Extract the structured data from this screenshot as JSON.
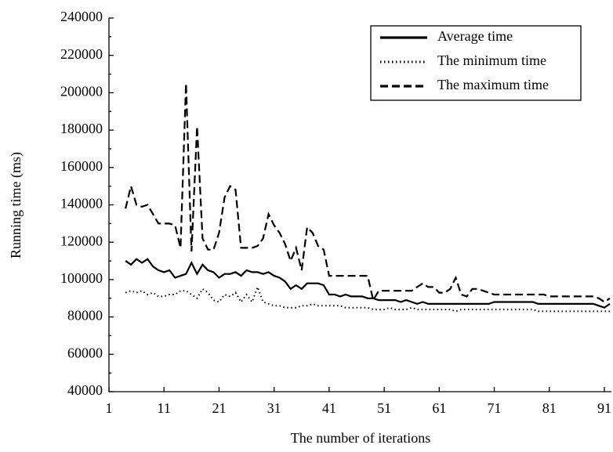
{
  "chart_data": {
    "type": "line",
    "x_label": "The number of iterations",
    "y_label": "Running time (ms)",
    "x": [
      4,
      5,
      6,
      7,
      8,
      9,
      10,
      11,
      12,
      13,
      14,
      15,
      16,
      17,
      18,
      19,
      20,
      21,
      22,
      23,
      24,
      25,
      26,
      27,
      28,
      29,
      30,
      31,
      32,
      33,
      34,
      35,
      36,
      37,
      38,
      39,
      40,
      41,
      42,
      43,
      44,
      45,
      46,
      47,
      48,
      49,
      50,
      51,
      52,
      53,
      54,
      55,
      56,
      57,
      58,
      59,
      60,
      61,
      62,
      63,
      64,
      65,
      66,
      67,
      68,
      69,
      70,
      71,
      72,
      73,
      74,
      75,
      76,
      77,
      78,
      79,
      80,
      81,
      82,
      83,
      84,
      85,
      86,
      87,
      88,
      89,
      90,
      91,
      92
    ],
    "series": [
      {
        "name": "Average time",
        "color": "#000000",
        "style": "solid",
        "values": [
          110000,
          108000,
          111000,
          109000,
          111000,
          107000,
          105000,
          104000,
          105000,
          101000,
          102000,
          103000,
          109000,
          103000,
          108000,
          105000,
          104000,
          101000,
          103000,
          103000,
          104000,
          102000,
          105000,
          104000,
          104000,
          103000,
          104000,
          102000,
          101000,
          99000,
          95000,
          97000,
          95000,
          98000,
          98000,
          98000,
          97000,
          92000,
          92000,
          91000,
          92000,
          91000,
          91000,
          91000,
          90000,
          90000,
          89000,
          89000,
          89000,
          89000,
          88000,
          89000,
          88000,
          87000,
          88000,
          87000,
          87000,
          87000,
          87000,
          87000,
          87000,
          87000,
          87000,
          87000,
          87000,
          87000,
          87000,
          88000,
          88000,
          88000,
          88000,
          88000,
          88000,
          88000,
          88000,
          87000,
          87000,
          87000,
          87000,
          87000,
          87000,
          87000,
          87000,
          87000,
          87000,
          87000,
          86000,
          85000,
          87000
        ]
      },
      {
        "name": "The minimum time",
        "color": "#000000",
        "style": "dotted",
        "values": [
          93000,
          94000,
          93000,
          94000,
          92000,
          93000,
          91000,
          91000,
          92000,
          92000,
          94000,
          94000,
          92000,
          90000,
          95000,
          93000,
          89000,
          88000,
          92000,
          91000,
          93000,
          88000,
          92000,
          88000,
          96000,
          88000,
          87000,
          86000,
          86000,
          85000,
          85000,
          85000,
          86000,
          86000,
          87000,
          86000,
          86000,
          86000,
          86000,
          86000,
          85000,
          85000,
          85000,
          85000,
          85000,
          84000,
          84000,
          84000,
          85000,
          84000,
          84000,
          84000,
          85000,
          84000,
          84000,
          84000,
          84000,
          84000,
          84000,
          84000,
          83000,
          84000,
          84000,
          84000,
          84000,
          84000,
          84000,
          84000,
          84000,
          84000,
          84000,
          84000,
          84000,
          84000,
          84000,
          83000,
          83000,
          83000,
          83000,
          83000,
          83000,
          83000,
          83000,
          83000,
          83000,
          83000,
          83000,
          83000,
          83000
        ]
      },
      {
        "name": "The maximum time",
        "color": "#000000",
        "style": "dashed",
        "values": [
          138000,
          150000,
          140000,
          139000,
          140000,
          135000,
          130000,
          130000,
          130000,
          129000,
          117000,
          205000,
          115000,
          182000,
          122000,
          116000,
          116000,
          125000,
          144000,
          150000,
          148000,
          117000,
          117000,
          117000,
          118000,
          122000,
          135000,
          129000,
          125000,
          119000,
          110000,
          117000,
          105000,
          128000,
          125000,
          118000,
          116000,
          102000,
          102000,
          102000,
          102000,
          102000,
          102000,
          102000,
          102000,
          89000,
          94000,
          94000,
          94000,
          94000,
          94000,
          94000,
          94000,
          96000,
          98000,
          96000,
          96000,
          93000,
          93000,
          95000,
          101000,
          92000,
          91000,
          95000,
          95000,
          94000,
          93000,
          92000,
          92000,
          92000,
          92000,
          92000,
          92000,
          92000,
          92000,
          92000,
          92000,
          91000,
          91000,
          91000,
          91000,
          91000,
          91000,
          91000,
          91000,
          91000,
          90000,
          88000,
          90000
        ]
      }
    ],
    "xlim": [
      1,
      92
    ],
    "xticks": [
      1,
      11,
      21,
      31,
      41,
      51,
      61,
      71,
      81,
      91
    ],
    "ylim": [
      40000,
      240000
    ],
    "yticks": [
      40000,
      60000,
      80000,
      100000,
      120000,
      140000,
      160000,
      180000,
      200000,
      220000,
      240000
    ],
    "legend": "upper right"
  }
}
